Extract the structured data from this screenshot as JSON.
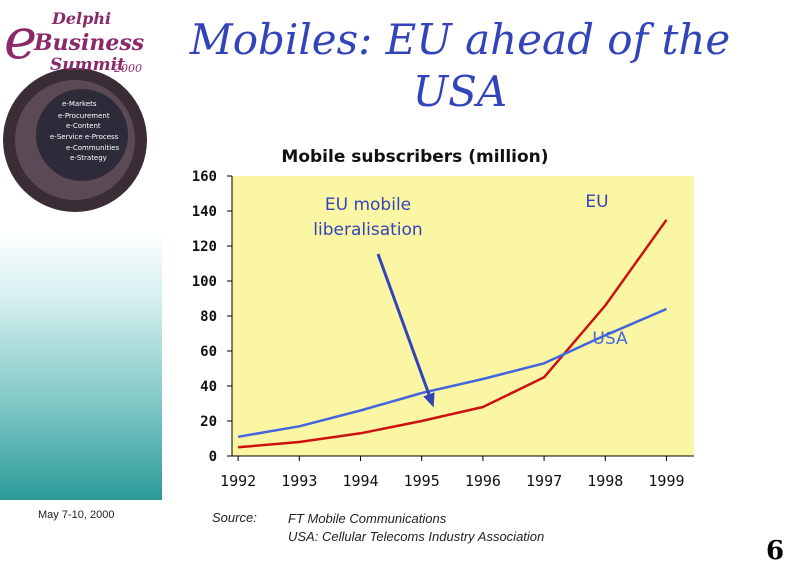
{
  "logo": {
    "line1": "Delphi",
    "line2": "Business",
    "line3": "Summit",
    "year": "2000",
    "menu": [
      "e-Markets",
      "e-Procurement",
      "e-Content",
      "e-Service  e-Process",
      "e-Communities",
      "e-Strategy"
    ]
  },
  "slide": {
    "title_line1": "Mobiles: EU ahead of the",
    "title_line2": "USA",
    "date": "May 7-10, 2000",
    "source_label": "Source:",
    "source_line1": "FT Mobile Communications",
    "source_line2": "USA: Cellular Telecoms Industry Association",
    "page_number": "6"
  },
  "chart_data": {
    "type": "line",
    "title": "Mobile subscribers (million)",
    "categories": [
      "1992",
      "1993",
      "1994",
      "1995",
      "1996",
      "1997",
      "1998",
      "1999"
    ],
    "ylim": [
      0,
      160
    ],
    "yticks": [
      0,
      20,
      40,
      60,
      80,
      100,
      120,
      140,
      160
    ],
    "series": [
      {
        "name": "EU",
        "color": "#cc1111",
        "x": [
          1992,
          1993,
          1994,
          1995,
          1996,
          1997,
          1998,
          1999
        ],
        "values": [
          5,
          8,
          13,
          20,
          28,
          45,
          86,
          135
        ]
      },
      {
        "name": "USA",
        "color": "#4466dd",
        "x": [
          1992,
          1993,
          1994,
          1995,
          1996,
          1997,
          1998,
          1999
        ],
        "values": [
          11,
          17,
          26,
          36,
          44,
          53,
          69,
          84
        ]
      }
    ],
    "series_labels": [
      {
        "text": "EU",
        "color": "#3344bb"
      },
      {
        "text": "USA",
        "color": "#4466dd"
      }
    ],
    "annotation": {
      "text_line1": "EU mobile",
      "text_line2": "liberalisation",
      "arrow_to_year": 1995,
      "arrow_to_value": 30
    },
    "plot_background": "#fbf6a4"
  }
}
